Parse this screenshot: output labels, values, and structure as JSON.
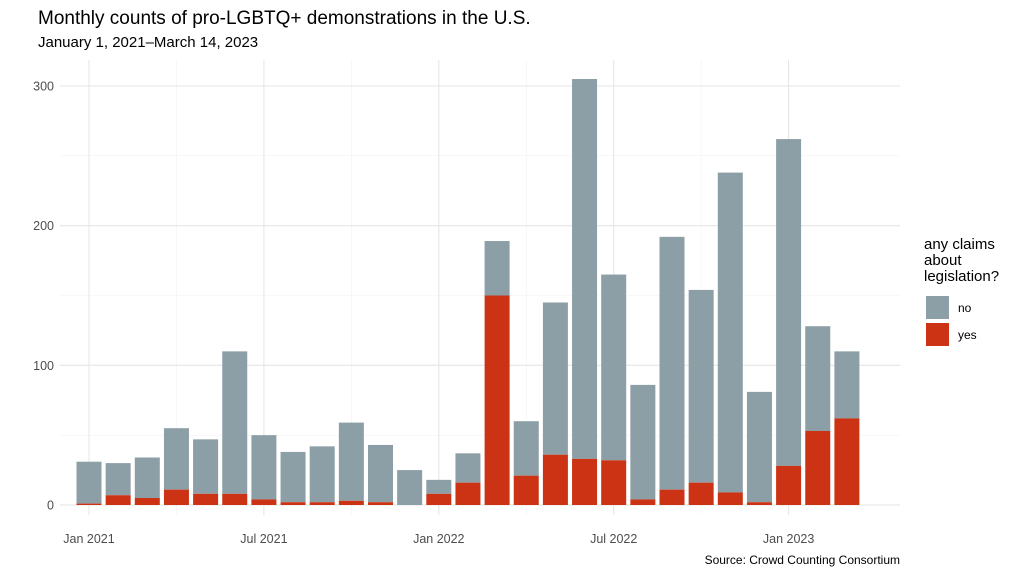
{
  "title": "Monthly counts of pro-LGBTQ+ demonstrations in the U.S.",
  "subtitle": "January 1, 2021–March 14, 2023",
  "caption": "Source: Crowd Counting Consortium",
  "legend": {
    "title": "any claims\nabout\nlegislation?",
    "items": [
      {
        "label": "no",
        "color": "#8c9fa6"
      },
      {
        "label": "yes",
        "color": "#cc3314"
      }
    ]
  },
  "chart_data": {
    "type": "bar",
    "stacked": true,
    "title": "Monthly counts of pro-LGBTQ+ demonstrations in the U.S.",
    "subtitle": "January 1, 2021–March 14, 2023",
    "xlabel": "",
    "ylabel": "",
    "ylim": [
      0,
      320
    ],
    "yticks": [
      0,
      100,
      200,
      300
    ],
    "grid": true,
    "legend_position": "right",
    "x_tick_labels": [
      {
        "label": "Jan 2021",
        "month": "2021-01"
      },
      {
        "label": "Jul 2021",
        "month": "2021-07"
      },
      {
        "label": "Jan 2022",
        "month": "2022-01"
      },
      {
        "label": "Jul 2022",
        "month": "2022-07"
      },
      {
        "label": "Jan 2023",
        "month": "2023-01"
      }
    ],
    "categories": [
      "2021-01",
      "2021-02",
      "2021-03",
      "2021-04",
      "2021-05",
      "2021-06",
      "2021-07",
      "2021-08",
      "2021-09",
      "2021-10",
      "2021-11",
      "2021-12",
      "2022-01",
      "2022-02",
      "2022-03",
      "2022-04",
      "2022-05",
      "2022-06",
      "2022-07",
      "2022-08",
      "2022-09",
      "2022-10",
      "2022-11",
      "2022-12",
      "2023-01",
      "2023-02",
      "2023-03"
    ],
    "series": [
      {
        "name": "yes",
        "color": "#cc3314",
        "values": [
          1,
          7,
          5,
          11,
          8,
          8,
          4,
          2,
          2,
          3,
          2,
          0,
          8,
          16,
          150,
          21,
          36,
          33,
          32,
          4,
          11,
          16,
          9,
          2,
          28,
          53,
          62
        ]
      },
      {
        "name": "no",
        "color": "#8c9fa6",
        "values": [
          30,
          23,
          29,
          44,
          39,
          102,
          46,
          36,
          40,
          56,
          41,
          25,
          10,
          21,
          39,
          39,
          109,
          272,
          133,
          82,
          181,
          138,
          229,
          79,
          234,
          75,
          48
        ]
      }
    ]
  }
}
